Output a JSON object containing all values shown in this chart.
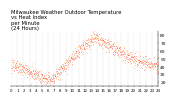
{
  "title_line1": "Milwaukee Weather Outdoor Temperature",
  "title_line2": "vs Heat Index",
  "title_line3": "per Minute",
  "title_line4": "(24 Hours)",
  "title_fontsize": 3.8,
  "bg_color": "#ffffff",
  "temp_color": "#ff0000",
  "hi_color": "#ff8c00",
  "dot_size": 0.4,
  "ylabel_fontsize": 3.2,
  "xlabel_fontsize": 2.8,
  "yticks": [
    20,
    30,
    40,
    50,
    60,
    70,
    80
  ],
  "ylim": [
    15,
    85
  ],
  "xlim": [
    0,
    1440
  ],
  "xtick_step": 60,
  "num_hours": 25,
  "grid_color": "#bbbbbb",
  "grid_lw": 0.3
}
